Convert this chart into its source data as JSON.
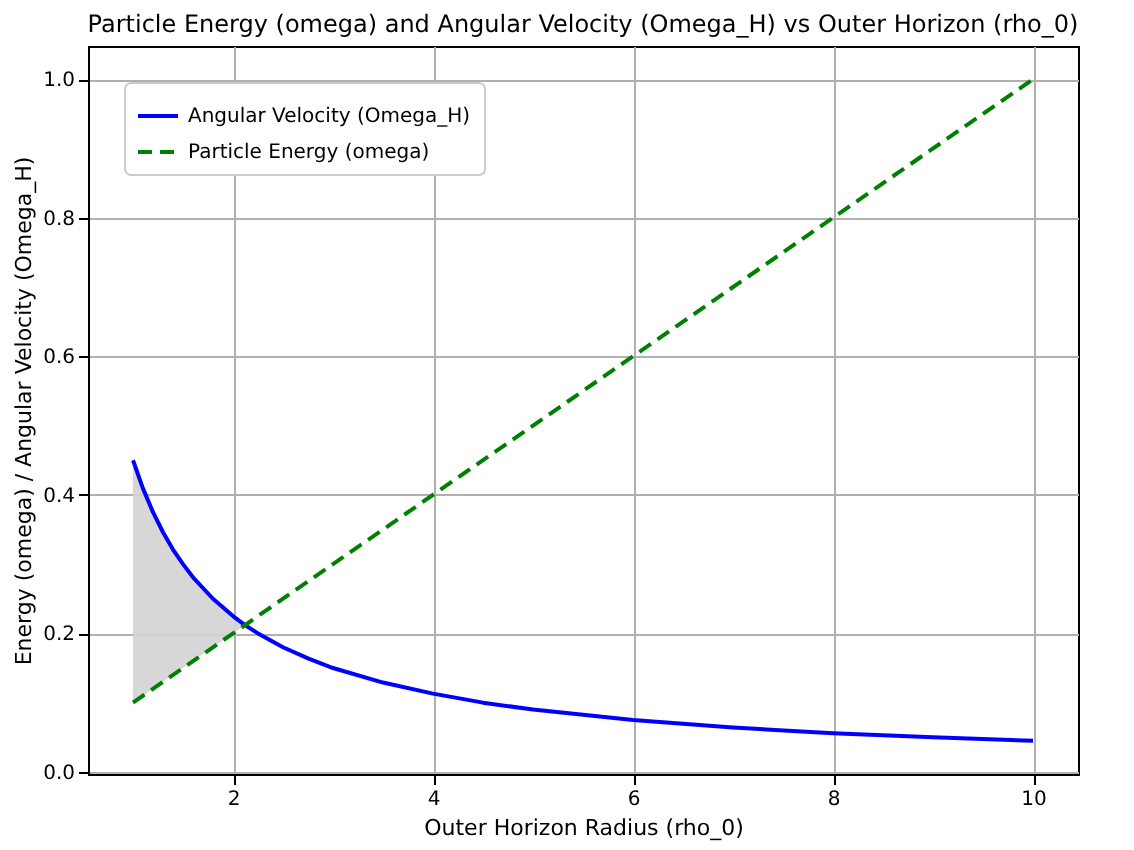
{
  "chart_data": {
    "type": "line",
    "title": "Particle Energy (omega) and Angular Velocity (Omega_H) vs Outer Horizon (rho_0)",
    "xlabel": "Outer Horizon Radius (rho_0)",
    "ylabel": "Energy (omega) / Angular Velocity (Omega_H)",
    "series": [
      {
        "name": "Angular Velocity (Omega_H)",
        "color": "#0000ff",
        "line_style": "solid",
        "x": [
          1,
          1.1,
          1.2,
          1.3,
          1.4,
          1.5,
          1.6,
          1.8,
          2,
          2.12,
          2.25,
          2.5,
          2.75,
          3,
          3.5,
          4,
          4.5,
          5,
          6,
          7,
          8,
          9,
          10
        ],
        "values": [
          0.45,
          0.409,
          0.375,
          0.346,
          0.321,
          0.3,
          0.281,
          0.25,
          0.225,
          0.212,
          0.2,
          0.18,
          0.164,
          0.15,
          0.129,
          0.113,
          0.1,
          0.09,
          0.075,
          0.064,
          0.056,
          0.05,
          0.045
        ],
        "lower": [
          0.1,
          0.11,
          0.12,
          0.13,
          0.14,
          0.15,
          0.16,
          0.18,
          0.2,
          0.212,
          null,
          null,
          null,
          null,
          null,
          null,
          null,
          null,
          null,
          null,
          null,
          null,
          null
        ],
        "upper": [
          0.45,
          0.409,
          0.375,
          0.346,
          0.321,
          0.3,
          0.281,
          0.25,
          0.225,
          0.212,
          null,
          null,
          null,
          null,
          null,
          null,
          null,
          null,
          null,
          null,
          null,
          null,
          null
        ]
      },
      {
        "name": "Particle Energy (omega)",
        "color": "#008000",
        "line_style": "dashed",
        "x": [
          1,
          10
        ],
        "values": [
          0.1,
          1.0
        ]
      }
    ],
    "xlim": [
      0.55,
      10.45
    ],
    "ylim": [
      -0.003,
      1.048
    ],
    "xticks": [
      2,
      4,
      6,
      8,
      10
    ],
    "yticks": [
      {
        "value": 0,
        "label": "0.0"
      },
      {
        "value": 0.2,
        "label": "0.2"
      },
      {
        "value": 0.4,
        "label": "0.4"
      },
      {
        "value": 0.6,
        "label": "0.6"
      },
      {
        "value": 0.8,
        "label": "0.8"
      },
      {
        "value": 1,
        "label": "1.0"
      }
    ],
    "grid": true,
    "legend": "top left"
  }
}
